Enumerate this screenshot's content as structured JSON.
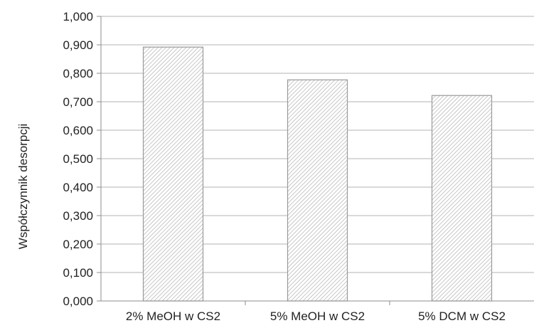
{
  "chart_data": {
    "type": "bar",
    "title": "",
    "xlabel": "",
    "ylabel": "Współczynnik desorpcji",
    "categories": [
      "2% MeOH w CS2",
      "5% MeOH w CS2",
      "5% DCM w CS2"
    ],
    "values": [
      0.892,
      0.777,
      0.722
    ],
    "ylim": [
      0,
      1.0
    ],
    "yticks": [
      0.0,
      0.1,
      0.2,
      0.3,
      0.4,
      0.5,
      0.6,
      0.7,
      0.8,
      0.9,
      1.0
    ],
    "ytick_labels": [
      "0,000",
      "0,100",
      "0,200",
      "0,300",
      "0,400",
      "0,500",
      "0,600",
      "0,700",
      "0,800",
      "0,900",
      "1,000"
    ],
    "grid": "horizontal",
    "legend": "none",
    "colors": {
      "bar_fill": "#ffffff",
      "bar_hatch": "#b0b0b0",
      "bar_edge": "#9a9a9a",
      "grid": "#b3b3b3",
      "axis": "#8c8c8c",
      "text": "#222222"
    }
  }
}
